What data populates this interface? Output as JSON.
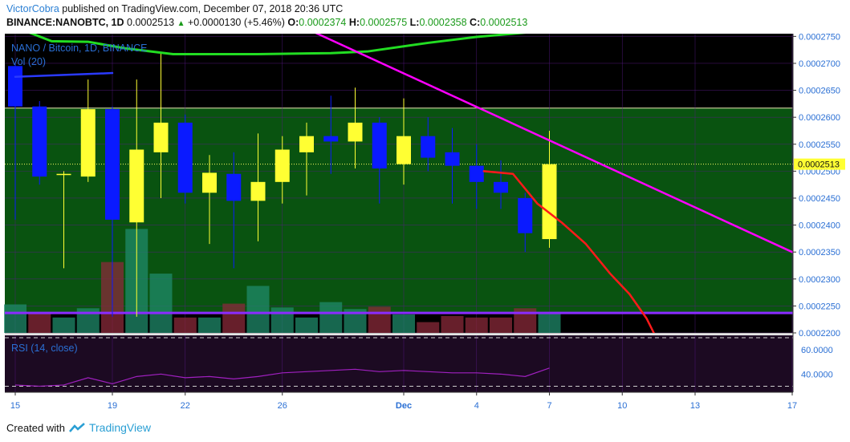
{
  "header": {
    "author": "VictorCobra",
    "published_text": "published on TradingView.com, December 07, 2018 20:36 UTC",
    "symbol": "BINANCE:NANOBTC, 1D",
    "last": "0.0002513",
    "change": "+0.0000130 (+5.46%)",
    "open_label": "O:",
    "open": "0.0002374",
    "high_label": "H:",
    "high": "0.0002575",
    "low_label": "L:",
    "low": "0.0002358",
    "close_label": "C:",
    "close": "0.0002513"
  },
  "footer": {
    "created_with": "Created with",
    "brand": "TradingView"
  },
  "colors": {
    "panel_bg": "#000000",
    "zone_fill": "#0a5c12",
    "up_candle": "#ffff33",
    "down_candle": "#0a1aff",
    "trend_line": "#ff00ff",
    "ma_green": "#22dd22",
    "ma_red": "#ff1a1a",
    "support_line": "#8a2bff",
    "rsi_bg": "#1c0a22",
    "rsi_line": "#a020c0",
    "axis_text": "#2a6fd4",
    "grid": "#5a1a8a"
  },
  "chart_data": {
    "type": "candlestick",
    "title": "NANO / Bitcoin, 1D, BINANCE",
    "volume_label": "Vol (20)",
    "rsi_label": "RSI (14, close)",
    "price_axis": {
      "ticks": [
        "0.0002750",
        "0.0002700",
        "0.0002650",
        "0.0002600",
        "0.0002550",
        "0.0002500",
        "0.0002450",
        "0.0002400",
        "0.0002350",
        "0.0002300",
        "0.0002250",
        "0.0002200"
      ],
      "range": [
        0.00022,
        0.0002755
      ]
    },
    "last_price_label": "0.0002513",
    "rsi_axis": {
      "ticks": [
        "60.0000",
        "40.0000"
      ],
      "range": [
        25,
        72
      ]
    },
    "x_axis": {
      "labels": [
        {
          "text": "15",
          "day": 0
        },
        {
          "text": "19",
          "day": 4
        },
        {
          "text": "22",
          "day": 7
        },
        {
          "text": "26",
          "day": 11
        },
        {
          "text": "Dec",
          "day": 16
        },
        {
          "text": "4",
          "day": 19
        },
        {
          "text": "7",
          "day": 22
        },
        {
          "text": "10",
          "day": 25
        },
        {
          "text": "13",
          "day": 28
        },
        {
          "text": "17",
          "day": 32
        }
      ],
      "days_visible": [
        0,
        32
      ]
    },
    "candles": [
      {
        "day": 0,
        "o": 0.0002695,
        "h": 0.00027,
        "l": 0.000241,
        "c": 0.000262
      },
      {
        "day": 1,
        "o": 0.000262,
        "h": 0.000263,
        "l": 0.0002475,
        "c": 0.000249
      },
      {
        "day": 2,
        "o": 0.0002495,
        "h": 0.00025,
        "l": 0.000232,
        "c": 0.0002495
      },
      {
        "day": 3,
        "o": 0.000249,
        "h": 0.000267,
        "l": 0.000248,
        "c": 0.0002615
      },
      {
        "day": 4,
        "o": 0.0002615,
        "h": 0.000262,
        "l": 0.000223,
        "c": 0.000241
      },
      {
        "day": 5,
        "o": 0.0002405,
        "h": 0.000267,
        "l": 0.000223,
        "c": 0.000254
      },
      {
        "day": 6,
        "o": 0.0002535,
        "h": 0.000272,
        "l": 0.000245,
        "c": 0.000259
      },
      {
        "day": 7,
        "o": 0.000259,
        "h": 0.0002605,
        "l": 0.000244,
        "c": 0.000246
      },
      {
        "day": 8,
        "o": 0.000246,
        "h": 0.000253,
        "l": 0.0002365,
        "c": 0.0002497
      },
      {
        "day": 9,
        "o": 0.0002495,
        "h": 0.0002535,
        "l": 0.000232,
        "c": 0.0002445
      },
      {
        "day": 10,
        "o": 0.0002445,
        "h": 0.000257,
        "l": 0.000237,
        "c": 0.000248
      },
      {
        "day": 11,
        "o": 0.000248,
        "h": 0.0002565,
        "l": 0.000244,
        "c": 0.000254
      },
      {
        "day": 12,
        "o": 0.0002535,
        "h": 0.000259,
        "l": 0.0002455,
        "c": 0.0002565
      },
      {
        "day": 13,
        "o": 0.0002565,
        "h": 0.000264,
        "l": 0.0002495,
        "c": 0.0002555
      },
      {
        "day": 14,
        "o": 0.0002555,
        "h": 0.0002655,
        "l": 0.0002505,
        "c": 0.000259
      },
      {
        "day": 15,
        "o": 0.000259,
        "h": 0.00026,
        "l": 0.000244,
        "c": 0.0002505
      },
      {
        "day": 16,
        "o": 0.0002513,
        "h": 0.0002635,
        "l": 0.0002475,
        "c": 0.0002565
      },
      {
        "day": 17,
        "o": 0.0002565,
        "h": 0.00026,
        "l": 0.00025,
        "c": 0.0002525
      },
      {
        "day": 18,
        "o": 0.0002535,
        "h": 0.000258,
        "l": 0.000244,
        "c": 0.000251
      },
      {
        "day": 19,
        "o": 0.000251,
        "h": 0.000255,
        "l": 0.000243,
        "c": 0.000248
      },
      {
        "day": 20,
        "o": 0.000248,
        "h": 0.000252,
        "l": 0.000243,
        "c": 0.000246
      },
      {
        "day": 21,
        "o": 0.000245,
        "h": 0.000246,
        "l": 0.000235,
        "c": 0.0002385
      },
      {
        "day": 22,
        "o": 0.0002374,
        "h": 0.0002575,
        "l": 0.0002358,
        "c": 0.0002513
      }
    ],
    "volume_bars": [
      {
        "day": 0,
        "v": 37,
        "up": true
      },
      {
        "day": 1,
        "v": 25,
        "up": false
      },
      {
        "day": 2,
        "v": 20,
        "up": true
      },
      {
        "day": 3,
        "v": 32,
        "up": true
      },
      {
        "day": 4,
        "v": 92,
        "up": false
      },
      {
        "day": 5,
        "v": 135,
        "up": true
      },
      {
        "day": 6,
        "v": 77,
        "up": true
      },
      {
        "day": 7,
        "v": 20,
        "up": false
      },
      {
        "day": 8,
        "v": 20,
        "up": true
      },
      {
        "day": 9,
        "v": 38,
        "up": false
      },
      {
        "day": 10,
        "v": 61,
        "up": true
      },
      {
        "day": 11,
        "v": 33,
        "up": true
      },
      {
        "day": 12,
        "v": 20,
        "up": true
      },
      {
        "day": 13,
        "v": 40,
        "up": true
      },
      {
        "day": 14,
        "v": 31,
        "up": true
      },
      {
        "day": 15,
        "v": 34,
        "up": false
      },
      {
        "day": 16,
        "v": 24,
        "up": true
      },
      {
        "day": 17,
        "v": 14,
        "up": false
      },
      {
        "day": 18,
        "v": 22,
        "up": false
      },
      {
        "day": 19,
        "v": 20,
        "up": false
      },
      {
        "day": 20,
        "v": 20,
        "up": false
      },
      {
        "day": 21,
        "v": 32,
        "up": false
      },
      {
        "day": 22,
        "v": 26,
        "up": true
      }
    ],
    "support_zone": [
      0.0002237,
      0.0002617
    ],
    "support_level": 0.0002237,
    "dotted_price_level": 0.0002513,
    "trend_line": [
      {
        "day": 12.3,
        "p": 0.0002758
      },
      {
        "day": 32,
        "p": 0.000235
      }
    ],
    "blue_line": [
      {
        "day": 0,
        "p": 0.0002675
      },
      {
        "day": 4,
        "p": 0.0002682
      }
    ],
    "green_ma": [
      {
        "day": 0.3,
        "p": 0.0002762
      },
      {
        "day": 1.5,
        "p": 0.0002741
      },
      {
        "day": 3,
        "p": 0.000274
      },
      {
        "day": 4.5,
        "p": 0.0002728
      },
      {
        "day": 6.5,
        "p": 0.0002717
      },
      {
        "day": 10,
        "p": 0.0002717
      },
      {
        "day": 13,
        "p": 0.0002719
      },
      {
        "day": 14.5,
        "p": 0.0002722
      },
      {
        "day": 17,
        "p": 0.0002738
      },
      {
        "day": 19,
        "p": 0.0002749
      },
      {
        "day": 21,
        "p": 0.0002757
      }
    ],
    "red_ma": [
      {
        "day": 19.3,
        "p": 0.00025
      },
      {
        "day": 20.5,
        "p": 0.0002495
      },
      {
        "day": 21.5,
        "p": 0.000244
      },
      {
        "day": 22.5,
        "p": 0.0002405
      },
      {
        "day": 23.5,
        "p": 0.0002365
      },
      {
        "day": 24.5,
        "p": 0.000231
      },
      {
        "day": 25.3,
        "p": 0.0002272
      },
      {
        "day": 26,
        "p": 0.0002227
      },
      {
        "day": 26.3,
        "p": 0.00022
      }
    ],
    "rsi": [
      {
        "day": 0,
        "v": 31
      },
      {
        "day": 1,
        "v": 30
      },
      {
        "day": 2,
        "v": 31
      },
      {
        "day": 3,
        "v": 37
      },
      {
        "day": 4,
        "v": 32
      },
      {
        "day": 5,
        "v": 38
      },
      {
        "day": 6,
        "v": 40
      },
      {
        "day": 7,
        "v": 37
      },
      {
        "day": 8,
        "v": 38
      },
      {
        "day": 9,
        "v": 36
      },
      {
        "day": 10,
        "v": 38
      },
      {
        "day": 11,
        "v": 41
      },
      {
        "day": 12,
        "v": 42
      },
      {
        "day": 13,
        "v": 43
      },
      {
        "day": 14,
        "v": 44
      },
      {
        "day": 15,
        "v": 42
      },
      {
        "day": 16,
        "v": 43
      },
      {
        "day": 17,
        "v": 42
      },
      {
        "day": 18,
        "v": 41
      },
      {
        "day": 19,
        "v": 41
      },
      {
        "day": 20,
        "v": 40
      },
      {
        "day": 21,
        "v": 38
      },
      {
        "day": 22,
        "v": 45
      }
    ],
    "rsi_bands": [
      70,
      30
    ],
    "grid": true
  }
}
